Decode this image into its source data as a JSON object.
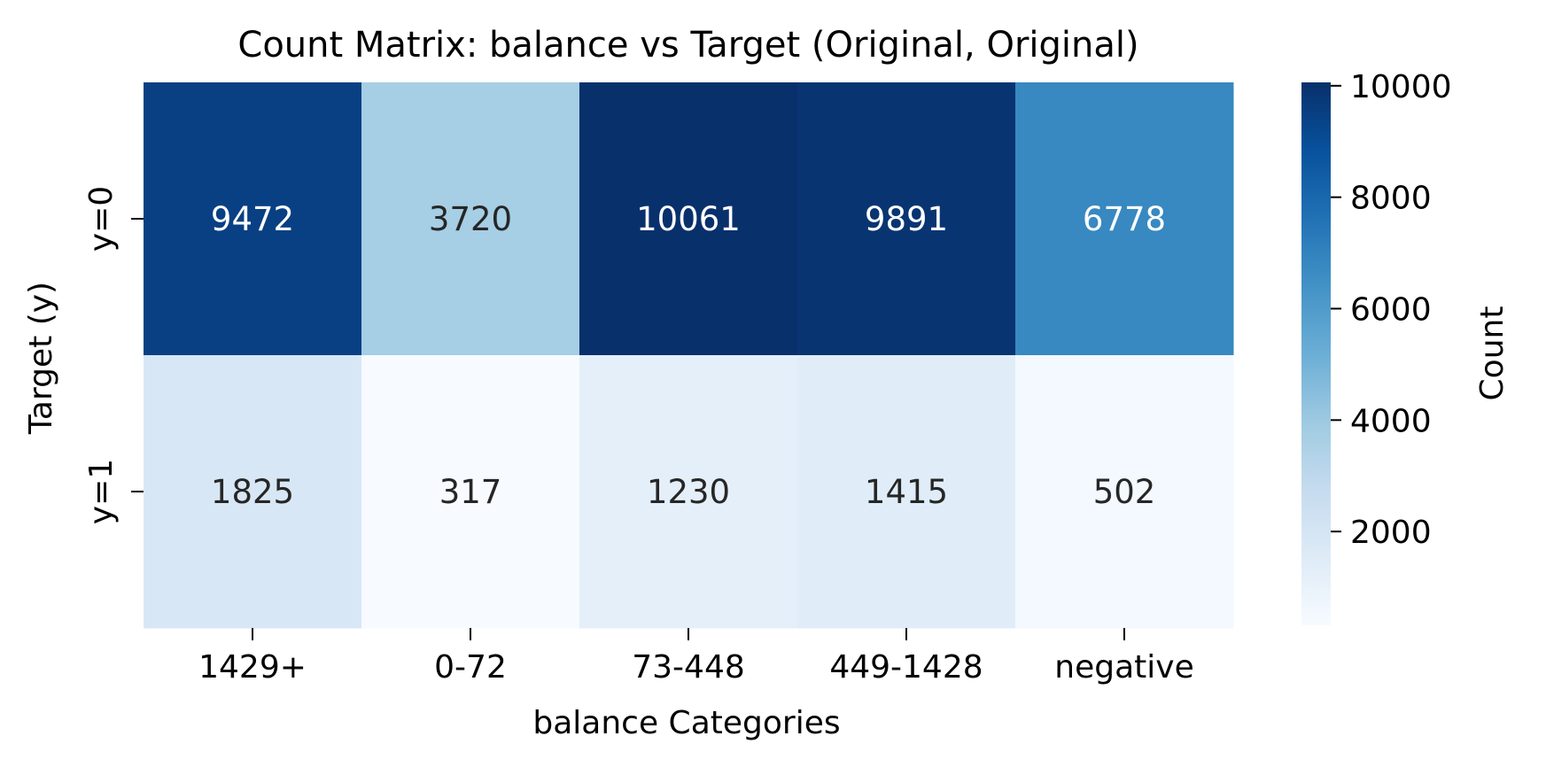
{
  "chart_data": {
    "type": "heatmap",
    "title": "Count Matrix: balance vs Target (Original, Original)",
    "xlabel": "balance Categories",
    "ylabel": "Target (y)",
    "x_categories": [
      "1429+",
      "0-72",
      "73-448",
      "449-1428",
      "negative"
    ],
    "y_categories": [
      "y=0",
      "y=1"
    ],
    "values": [
      [
        9472,
        3720,
        10061,
        9891,
        6778
      ],
      [
        1825,
        317,
        1230,
        1415,
        502
      ]
    ],
    "colormap": "Blues",
    "colorbar": {
      "label": "Count",
      "range": [
        317,
        10061
      ],
      "ticks": [
        2000,
        4000,
        6000,
        8000,
        10000
      ],
      "tick_labels": [
        "2000",
        "4000",
        "6000",
        "8000",
        "10000"
      ]
    },
    "annotation_colors": {
      "light": "#ffffff",
      "dark": "#262626"
    },
    "grid": false
  }
}
